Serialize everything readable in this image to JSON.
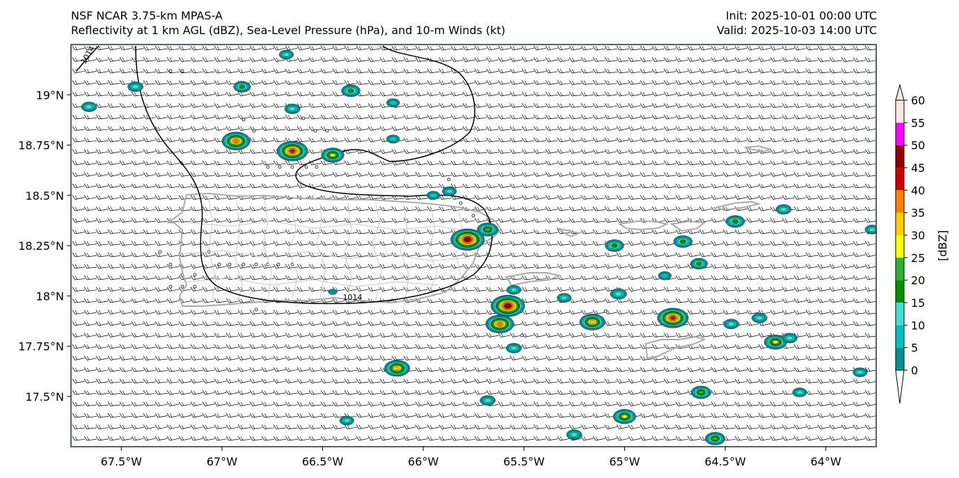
{
  "header": {
    "line1_left": "NSF NCAR 3.75-km MPAS-A",
    "line2_left": "Reflectivity at 1 km AGL (dBZ), Sea-Level Pressure (hPa), and 10-m Winds (kt)",
    "line1_right": "Init: 2025-10-01 00:00 UTC",
    "line2_right": "Valid: 2025-10-03 14:00 UTC"
  },
  "map": {
    "lon_range": [
      -67.75,
      -63.75
    ],
    "lat_range": [
      17.25,
      19.25
    ],
    "ocean_color": "#ffffff",
    "coastline_color": "#aaaaaa",
    "isobar_color": "#000000",
    "lon_ticks": [
      {
        "value": -67.5,
        "label": "67.5°W"
      },
      {
        "value": -67.0,
        "label": "67°W"
      },
      {
        "value": -66.5,
        "label": "66.5°W"
      },
      {
        "value": -66.0,
        "label": "66°W"
      },
      {
        "value": -65.5,
        "label": "65.5°W"
      },
      {
        "value": -65.0,
        "label": "65°W"
      },
      {
        "value": -64.5,
        "label": "64.5°W"
      },
      {
        "value": -64.0,
        "label": "64°W"
      }
    ],
    "lat_ticks": [
      {
        "value": 19.0,
        "label": "19°N"
      },
      {
        "value": 18.75,
        "label": "18.75°N"
      },
      {
        "value": 18.5,
        "label": "18.5°N"
      },
      {
        "value": 18.25,
        "label": "18.25°N"
      },
      {
        "value": 18.0,
        "label": "18°N"
      },
      {
        "value": 17.75,
        "label": "17.75°N"
      },
      {
        "value": 17.5,
        "label": "17.5°N"
      }
    ],
    "isobar_labels": [
      {
        "text": "1014",
        "lon": -67.68,
        "lat": 19.15
      },
      {
        "text": "1014",
        "lon": -66.4,
        "lat": 17.98
      }
    ],
    "radar_cells": [
      {
        "lon": -67.43,
        "lat": 19.04,
        "dbz": 12
      },
      {
        "lon": -67.66,
        "lat": 18.94,
        "dbz": 12
      },
      {
        "lon": -66.9,
        "lat": 19.04,
        "dbz": 15
      },
      {
        "lon": -66.93,
        "lat": 18.77,
        "dbz": 35
      },
      {
        "lon": -66.65,
        "lat": 18.72,
        "dbz": 40
      },
      {
        "lon": -66.45,
        "lat": 18.7,
        "dbz": 25
      },
      {
        "lon": -66.65,
        "lat": 18.93,
        "dbz": 12
      },
      {
        "lon": -66.36,
        "lat": 19.02,
        "dbz": 18
      },
      {
        "lon": -66.68,
        "lat": 19.2,
        "dbz": 10
      },
      {
        "lon": -65.87,
        "lat": 18.52,
        "dbz": 10
      },
      {
        "lon": -65.78,
        "lat": 18.28,
        "dbz": 45
      },
      {
        "lon": -65.68,
        "lat": 18.33,
        "dbz": 22
      },
      {
        "lon": -65.55,
        "lat": 18.03,
        "dbz": 10
      },
      {
        "lon": -65.58,
        "lat": 17.95,
        "dbz": 45
      },
      {
        "lon": -65.62,
        "lat": 17.86,
        "dbz": 35
      },
      {
        "lon": -65.55,
        "lat": 17.74,
        "dbz": 12
      },
      {
        "lon": -65.3,
        "lat": 17.99,
        "dbz": 10
      },
      {
        "lon": -65.16,
        "lat": 17.87,
        "dbz": 30
      },
      {
        "lon": -65.05,
        "lat": 18.25,
        "dbz": 18
      },
      {
        "lon": -65.03,
        "lat": 18.01,
        "dbz": 14
      },
      {
        "lon": -64.8,
        "lat": 18.1,
        "dbz": 8
      },
      {
        "lon": -64.71,
        "lat": 18.27,
        "dbz": 18
      },
      {
        "lon": -64.76,
        "lat": 17.89,
        "dbz": 40
      },
      {
        "lon": -64.63,
        "lat": 18.16,
        "dbz": 15
      },
      {
        "lon": -64.45,
        "lat": 18.37,
        "dbz": 18
      },
      {
        "lon": -64.47,
        "lat": 17.86,
        "dbz": 12
      },
      {
        "lon": -64.33,
        "lat": 17.89,
        "dbz": 12
      },
      {
        "lon": -64.25,
        "lat": 17.77,
        "dbz": 25
      },
      {
        "lon": -64.18,
        "lat": 17.79,
        "dbz": 12
      },
      {
        "lon": -64.21,
        "lat": 18.43,
        "dbz": 12
      },
      {
        "lon": -66.45,
        "lat": 18.02,
        "dbz": 0
      },
      {
        "lon": -66.13,
        "lat": 17.64,
        "dbz": 30
      },
      {
        "lon": -65.68,
        "lat": 17.48,
        "dbz": 12
      },
      {
        "lon": -66.38,
        "lat": 17.38,
        "dbz": 10
      },
      {
        "lon": -65.25,
        "lat": 17.31,
        "dbz": 12
      },
      {
        "lon": -65.0,
        "lat": 17.4,
        "dbz": 25
      },
      {
        "lon": -64.55,
        "lat": 17.29,
        "dbz": 20
      },
      {
        "lon": -64.62,
        "lat": 17.52,
        "dbz": 20
      },
      {
        "lon": -64.13,
        "lat": 17.52,
        "dbz": 10
      },
      {
        "lon": -63.77,
        "lat": 18.33,
        "dbz": 10
      },
      {
        "lon": -63.83,
        "lat": 17.62,
        "dbz": 10
      },
      {
        "lon": -66.15,
        "lat": 18.96,
        "dbz": 8
      },
      {
        "lon": -66.15,
        "lat": 18.78,
        "dbz": 8
      },
      {
        "lon": -65.95,
        "lat": 18.5,
        "dbz": 8
      }
    ]
  },
  "colorbar": {
    "label": "[dBZ]",
    "levels": [
      0,
      5,
      10,
      15,
      20,
      25,
      30,
      35,
      40,
      45,
      50,
      55,
      60
    ],
    "tick_labels": [
      "0",
      "5",
      "10",
      "15",
      "20",
      "25",
      "30",
      "35",
      "40",
      "45",
      "50",
      "55",
      "60"
    ],
    "colors": [
      "#ffffff",
      "#009090",
      "#00c0c0",
      "#40e0d0",
      "#009000",
      "#30b030",
      "#ffff00",
      "#ffd000",
      "#ff8000",
      "#d00000",
      "#900000",
      "#ff00ff",
      "#ffe6e0"
    ]
  }
}
